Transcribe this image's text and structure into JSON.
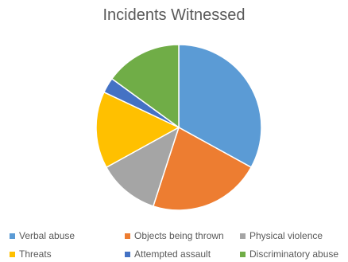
{
  "chart_data": {
    "type": "pie",
    "title": "Incidents Witnessed",
    "slices": [
      {
        "label": "Verbal abuse",
        "value": 33,
        "color": "#5B9BD5"
      },
      {
        "label": "Objects being thrown",
        "value": 22,
        "color": "#ED7D31"
      },
      {
        "label": "Physical violence",
        "value": 12,
        "color": "#A5A5A5"
      },
      {
        "label": "Threats",
        "value": 15,
        "color": "#FFC000"
      },
      {
        "label": "Attempted assault",
        "value": 3,
        "color": "#4472C4"
      },
      {
        "label": "Discriminatory abuse",
        "value": 15,
        "color": "#70AD47"
      }
    ],
    "legend_position": "bottom"
  }
}
